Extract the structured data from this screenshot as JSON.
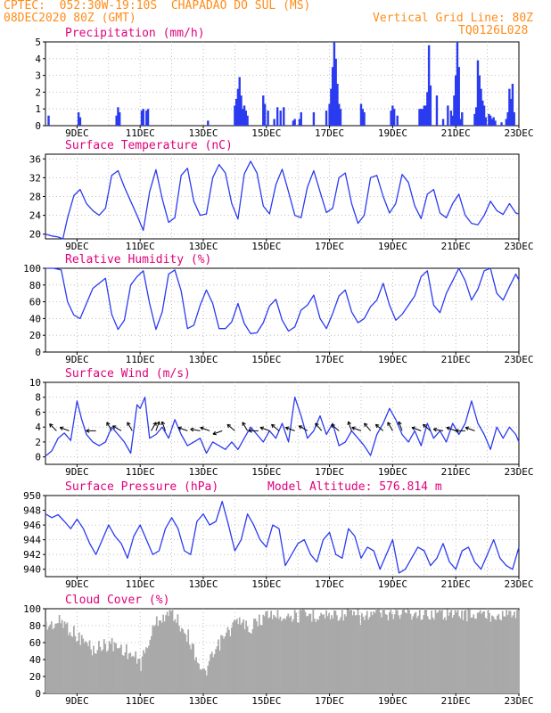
{
  "header": {
    "line1": "CPTEC:  052:30W-19:10S  CHAPADAO DO SUL (MS)",
    "line2": "08DEC2020 80Z (GMT)",
    "grid_note": "Vertical Grid Line: 80Z",
    "code": "TQ0126L028"
  },
  "colors": {
    "line": "#2b3bf0",
    "bar": "#2b3bf0",
    "cloud": "#a9a9a9",
    "title": "#e0007a",
    "header": "#ff8c1a"
  },
  "x_axis": {
    "day_range": [
      8.0,
      23.0
    ],
    "tick_days": [
      9,
      11,
      13,
      15,
      17,
      19,
      21,
      23
    ],
    "tick_labels": [
      "9DEC",
      "11DEC",
      "13DEC",
      "15DEC",
      "17DEC",
      "19DEC",
      "21DEC",
      "23DEC"
    ]
  },
  "chart_data": [
    {
      "type": "bar",
      "title": "Precipitation (mm/h)",
      "ylim": [
        0,
        5
      ],
      "yticks": [
        0,
        1,
        2,
        3,
        4,
        5
      ],
      "x_day": [
        8.1,
        9.05,
        9.1,
        10.25,
        10.3,
        10.35,
        11.05,
        11.1,
        11.2,
        11.25,
        13.15,
        14.0,
        14.05,
        14.1,
        14.15,
        14.2,
        14.25,
        14.3,
        14.35,
        14.4,
        14.9,
        14.95,
        15.05,
        15.25,
        15.35,
        15.45,
        15.55,
        15.85,
        15.9,
        16.05,
        16.1,
        16.5,
        16.9,
        17.0,
        17.05,
        17.1,
        17.15,
        17.2,
        17.25,
        17.3,
        17.35,
        18.0,
        18.05,
        18.1,
        18.95,
        19.0,
        19.05,
        19.15,
        19.85,
        19.9,
        19.95,
        20.0,
        20.05,
        20.1,
        20.15,
        20.2,
        20.4,
        20.6,
        20.75,
        20.85,
        20.9,
        20.95,
        21.0,
        21.05,
        21.1,
        21.15,
        21.2,
        21.6,
        21.65,
        21.7,
        21.75,
        21.8,
        21.85,
        21.9,
        21.95,
        22.05,
        22.1,
        22.15,
        22.2,
        22.25,
        22.45,
        22.6,
        22.65,
        22.7,
        22.75,
        22.8,
        22.85
      ],
      "values": [
        0.6,
        0.8,
        0.5,
        0.6,
        1.1,
        0.8,
        0.9,
        1.0,
        0.9,
        1.0,
        0.3,
        1.2,
        1.6,
        2.2,
        2.9,
        1.8,
        1.0,
        1.2,
        0.9,
        0.6,
        1.8,
        1.3,
        0.9,
        0.4,
        1.1,
        0.9,
        1.1,
        0.3,
        0.4,
        0.4,
        0.8,
        0.8,
        0.9,
        1.3,
        2.2,
        3.5,
        5.0,
        4.0,
        2.5,
        1.3,
        1.0,
        1.3,
        1.0,
        0.8,
        0.9,
        1.2,
        1.0,
        0.6,
        1.0,
        1.0,
        1.0,
        1.2,
        1.2,
        2.0,
        4.8,
        2.4,
        1.8,
        0.4,
        1.2,
        0.9,
        0.6,
        1.8,
        3.0,
        5.0,
        3.5,
        0.4,
        0.8,
        0.7,
        1.1,
        3.9,
        3.0,
        2.2,
        1.5,
        1.2,
        0.5,
        0.7,
        0.6,
        0.4,
        0.5,
        0.3,
        0.2,
        0.4,
        0.8,
        2.2,
        1.6,
        2.5,
        0.8
      ]
    },
    {
      "type": "line",
      "title": "Surface Temperature (nC)",
      "ylim": [
        19,
        37
      ],
      "yticks": [
        20,
        24,
        28,
        32,
        36
      ],
      "x": [
        8.0,
        8.2,
        8.4,
        8.55,
        8.7,
        8.9,
        9.1,
        9.3,
        9.5,
        9.7,
        9.9,
        10.1,
        10.3,
        10.5,
        10.7,
        10.9,
        11.1,
        11.3,
        11.5,
        11.7,
        11.9,
        12.1,
        12.3,
        12.5,
        12.7,
        12.9,
        13.1,
        13.3,
        13.5,
        13.7,
        13.9,
        14.1,
        14.3,
        14.5,
        14.7,
        14.9,
        15.1,
        15.3,
        15.5,
        15.7,
        15.9,
        16.1,
        16.3,
        16.5,
        16.7,
        16.9,
        17.1,
        17.3,
        17.5,
        17.7,
        17.9,
        18.1,
        18.3,
        18.5,
        18.7,
        18.9,
        19.1,
        19.3,
        19.5,
        19.7,
        19.9,
        20.1,
        20.3,
        20.5,
        20.7,
        20.9,
        21.1,
        21.3,
        21.5,
        21.7,
        21.9,
        22.1,
        22.3,
        22.5,
        22.7,
        22.9,
        23.0
      ],
      "values": [
        20.0,
        19.6,
        19.4,
        19.0,
        23.5,
        28.2,
        29.5,
        26.5,
        25.0,
        24.0,
        25.5,
        32.5,
        33.5,
        30.0,
        27.0,
        24.0,
        20.8,
        29.0,
        33.7,
        27.5,
        22.5,
        23.5,
        32.5,
        34.0,
        27.0,
        24.0,
        24.3,
        32.0,
        34.8,
        33.0,
        26.5,
        23.2,
        32.8,
        35.5,
        33.0,
        26.0,
        24.3,
        30.5,
        33.8,
        29.0,
        24.0,
        23.5,
        30.0,
        33.5,
        29.0,
        24.6,
        25.5,
        32.0,
        33.0,
        26.5,
        22.3,
        24.0,
        32.0,
        32.5,
        28.0,
        24.5,
        26.5,
        32.7,
        31.0,
        26.0,
        23.3,
        28.5,
        29.5,
        24.5,
        23.5,
        26.5,
        28.5,
        24.0,
        22.3,
        22.0,
        24.0,
        27.0,
        25.0,
        24.2,
        26.5,
        24.5,
        24.3
      ]
    },
    {
      "type": "line",
      "title": "Relative Humidity (%)",
      "ylim": [
        0,
        100
      ],
      "yticks": [
        0,
        20,
        40,
        60,
        80,
        100
      ],
      "x": [
        8.0,
        8.25,
        8.5,
        8.7,
        8.9,
        9.1,
        9.3,
        9.5,
        9.7,
        9.9,
        10.1,
        10.3,
        10.5,
        10.7,
        10.9,
        11.1,
        11.3,
        11.5,
        11.7,
        11.9,
        12.1,
        12.3,
        12.5,
        12.7,
        12.9,
        13.1,
        13.3,
        13.5,
        13.7,
        13.9,
        14.1,
        14.3,
        14.5,
        14.7,
        14.9,
        15.1,
        15.3,
        15.5,
        15.7,
        15.9,
        16.1,
        16.3,
        16.5,
        16.7,
        16.9,
        17.1,
        17.3,
        17.5,
        17.7,
        17.9,
        18.1,
        18.3,
        18.5,
        18.7,
        18.9,
        19.1,
        19.3,
        19.5,
        19.7,
        19.9,
        20.1,
        20.3,
        20.5,
        20.7,
        20.9,
        21.1,
        21.3,
        21.5,
        21.7,
        21.9,
        22.1,
        22.3,
        22.5,
        22.7,
        22.9,
        23.0
      ],
      "values": [
        100,
        100,
        98,
        60,
        44,
        40,
        58,
        76,
        82,
        88,
        45,
        27,
        38,
        80,
        90,
        97,
        58,
        27,
        48,
        93,
        98,
        73,
        28,
        32,
        56,
        74,
        58,
        28,
        28,
        36,
        58,
        34,
        22,
        23,
        35,
        55,
        63,
        38,
        25,
        30,
        50,
        56,
        68,
        40,
        28,
        46,
        67,
        74,
        48,
        35,
        40,
        54,
        62,
        82,
        56,
        38,
        45,
        56,
        67,
        90,
        97,
        56,
        47,
        70,
        85,
        100,
        85,
        62,
        75,
        97,
        100,
        70,
        62,
        78,
        93,
        86
      ]
    },
    {
      "type": "line",
      "title": "Surface Wind (m/s)",
      "ylim": [
        -1,
        10
      ],
      "yticks": [
        0,
        2,
        4,
        6,
        8,
        10
      ],
      "x": [
        8.0,
        8.2,
        8.4,
        8.6,
        8.8,
        9.0,
        9.15,
        9.3,
        9.5,
        9.7,
        9.9,
        10.1,
        10.3,
        10.5,
        10.7,
        10.9,
        11.0,
        11.15,
        11.3,
        11.5,
        11.7,
        11.9,
        12.1,
        12.3,
        12.5,
        12.7,
        12.9,
        13.1,
        13.3,
        13.5,
        13.7,
        13.9,
        14.1,
        14.3,
        14.5,
        14.7,
        14.9,
        15.1,
        15.3,
        15.5,
        15.7,
        15.9,
        16.1,
        16.3,
        16.5,
        16.7,
        16.9,
        17.1,
        17.3,
        17.5,
        17.7,
        17.9,
        18.1,
        18.3,
        18.5,
        18.7,
        18.9,
        19.1,
        19.3,
        19.5,
        19.7,
        19.9,
        20.1,
        20.3,
        20.5,
        20.7,
        20.9,
        21.1,
        21.3,
        21.5,
        21.7,
        21.9,
        22.1,
        22.3,
        22.5,
        22.7,
        22.9,
        23.0
      ],
      "values": [
        0.1,
        0.8,
        2.5,
        3.2,
        2.2,
        7.5,
        5.0,
        3.0,
        2.0,
        1.5,
        2.0,
        4.0,
        3.0,
        2.0,
        0.5,
        7.0,
        6.5,
        8.0,
        2.5,
        3.0,
        4.0,
        2.5,
        5.0,
        3.0,
        1.5,
        2.0,
        2.5,
        0.5,
        2.0,
        1.5,
        1.0,
        2.0,
        1.0,
        2.5,
        4.0,
        3.0,
        2.0,
        3.5,
        2.5,
        4.5,
        2.0,
        8.0,
        5.5,
        2.5,
        3.5,
        5.5,
        3.0,
        4.5,
        1.5,
        2.0,
        3.5,
        2.5,
        1.5,
        0.2,
        3.0,
        4.5,
        6.5,
        5.0,
        3.0,
        2.0,
        3.5,
        1.5,
        4.5,
        2.5,
        3.5,
        2.0,
        4.5,
        3.0,
        4.5,
        7.5,
        4.5,
        3.0,
        1.0,
        4.0,
        2.5,
        4.0,
        3.0,
        2.0
      ]
    },
    {
      "type": "line",
      "title": "Surface Pressure (hPa)",
      "subtitle": "Model Altitude: 576.814 m",
      "ylim": [
        939,
        950
      ],
      "yticks": [
        940,
        942,
        944,
        946,
        948,
        950
      ],
      "x": [
        8.0,
        8.2,
        8.4,
        8.6,
        8.8,
        9.0,
        9.2,
        9.4,
        9.6,
        9.8,
        10.0,
        10.2,
        10.4,
        10.6,
        10.8,
        11.0,
        11.2,
        11.4,
        11.6,
        11.8,
        12.0,
        12.2,
        12.4,
        12.6,
        12.8,
        13.0,
        13.2,
        13.4,
        13.6,
        13.8,
        14.0,
        14.2,
        14.4,
        14.6,
        14.8,
        15.0,
        15.2,
        15.4,
        15.6,
        15.8,
        16.0,
        16.2,
        16.4,
        16.6,
        16.8,
        17.0,
        17.2,
        17.4,
        17.6,
        17.8,
        18.0,
        18.2,
        18.4,
        18.6,
        18.8,
        19.0,
        19.2,
        19.4,
        19.6,
        19.8,
        20.0,
        20.2,
        20.4,
        20.6,
        20.8,
        21.0,
        21.2,
        21.4,
        21.6,
        21.8,
        22.0,
        22.2,
        22.4,
        22.6,
        22.8,
        23.0
      ],
      "values": [
        947.5,
        947.0,
        947.4,
        946.5,
        945.5,
        946.8,
        945.5,
        943.5,
        942.0,
        944.0,
        946.0,
        944.5,
        943.5,
        941.5,
        944.5,
        946.0,
        944.0,
        942.0,
        942.5,
        945.5,
        947.0,
        945.5,
        942.5,
        942.0,
        946.5,
        947.5,
        946.0,
        946.5,
        949.2,
        946.0,
        942.5,
        944.0,
        947.5,
        946.0,
        944.0,
        943.0,
        946.0,
        945.5,
        940.5,
        942.0,
        943.5,
        944.0,
        942.0,
        941.0,
        944.0,
        945.0,
        942.0,
        941.5,
        945.5,
        944.5,
        941.5,
        943.0,
        942.5,
        940.0,
        942.0,
        944.0,
        939.5,
        940.0,
        941.5,
        943.0,
        942.5,
        940.5,
        941.5,
        943.5,
        941.0,
        940.0,
        942.5,
        943.0,
        941.0,
        940.0,
        942.0,
        944.0,
        941.5,
        940.5,
        940.0,
        943.0
      ]
    },
    {
      "type": "bar",
      "title": "Cloud Cover (%)",
      "ylim": [
        0,
        100
      ],
      "yticks": [
        0,
        20,
        40,
        60,
        80,
        100
      ],
      "x_day": [
        8.0,
        8.5,
        9.0,
        9.5,
        10.0,
        10.5,
        11.0,
        11.5,
        12.0,
        12.5,
        13.0,
        13.5,
        14.0,
        14.5,
        15.0,
        15.5,
        16.0,
        16.5,
        17.0,
        17.5,
        18.0,
        18.5,
        19.0,
        19.5,
        20.0,
        20.5,
        21.0,
        21.5,
        22.0,
        22.5
      ],
      "values": [
        82,
        88,
        70,
        55,
        62,
        55,
        38,
        90,
        98,
        70,
        25,
        62,
        86,
        82,
        96,
        96,
        94,
        96,
        96,
        98,
        92,
        98,
        98,
        98,
        98,
        98,
        98,
        96,
        96,
        98
      ]
    }
  ],
  "wind_arrows": {
    "x_day": [
      8.35,
      8.75,
      9.6,
      10.1,
      10.4,
      10.75,
      11.35,
      11.5,
      11.8,
      12.5,
      12.9,
      13.2,
      13.6,
      14.0,
      14.4,
      14.75,
      15.1,
      15.4,
      15.9,
      16.3,
      16.75,
      17.3,
      17.7,
      18.0,
      18.3,
      18.7,
      19.0,
      19.3,
      19.9,
      20.2,
      20.6,
      21.0,
      21.3,
      21.6
    ],
    "angle_deg": [
      225,
      200,
      180,
      240,
      210,
      240,
      300,
      290,
      250,
      200,
      190,
      200,
      160,
      220,
      240,
      180,
      200,
      220,
      200,
      210,
      230,
      220,
      250,
      200,
      230,
      220,
      240,
      250,
      200,
      220,
      190,
      200,
      180,
      200
    ]
  }
}
